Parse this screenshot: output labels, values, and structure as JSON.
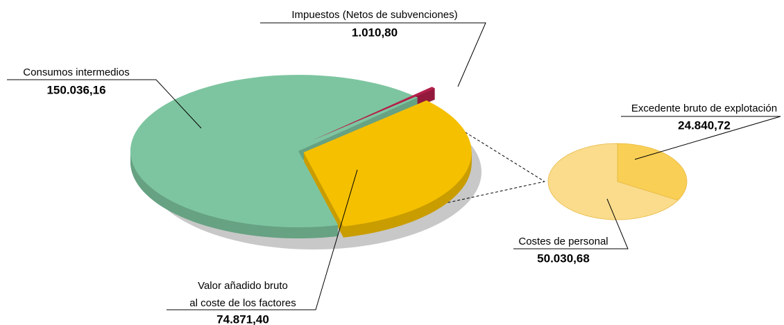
{
  "chart_data": {
    "type": "pie-of-pie",
    "categories": [
      "Consumos intermedios",
      "Valor añadido bruto\nal coste de los factores",
      "Impuestos (Netos de subvenciones)"
    ],
    "values": [
      150036.16,
      74871.4,
      1010.8
    ],
    "value_labels": [
      "150.036,16",
      "74.871,40",
      "1.010,80"
    ],
    "colors": [
      "#7dc5a0",
      "#f5c000",
      "#b3204a"
    ],
    "breakout": {
      "categories": [
        "Excedente bruto de explotación",
        "Costes de personal"
      ],
      "values": [
        24840.72,
        50030.68
      ],
      "value_labels": [
        "24.840,72",
        "50.030,68"
      ],
      "colors": [
        "#f9cf55",
        "#fadc8c"
      ]
    }
  }
}
